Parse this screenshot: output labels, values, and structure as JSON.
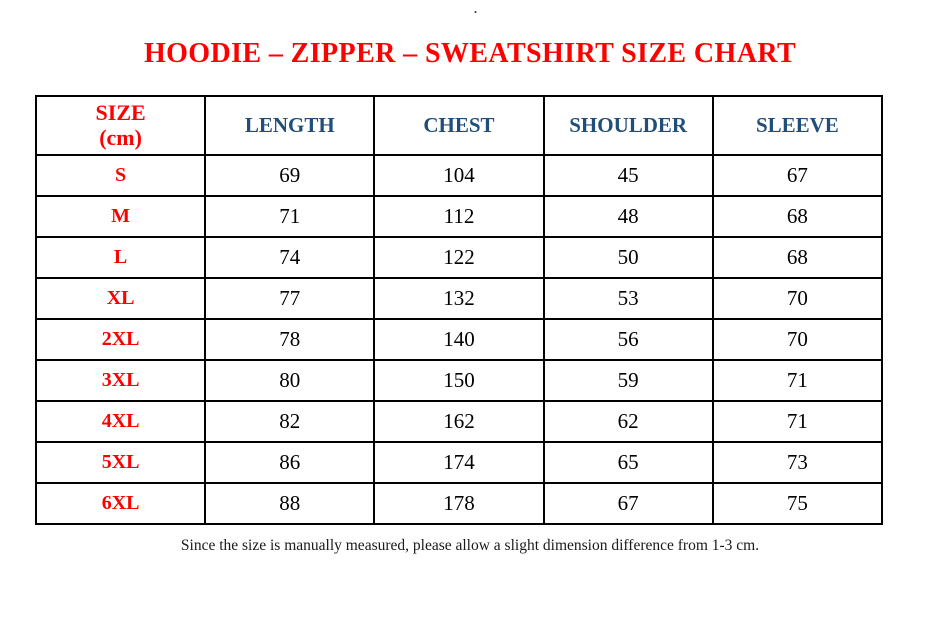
{
  "decor": {
    "top_dot": "."
  },
  "title": {
    "text": "HOODIE – ZIPPER – SWEATSHIRT SIZE CHART"
  },
  "table": {
    "header": {
      "size_line1": "SIZE",
      "size_line2": "(cm)",
      "columns": [
        "LENGTH",
        "CHEST",
        "SHOULDER",
        "SLEEVE"
      ]
    }
  },
  "footer": {
    "note": "Since the size is manually measured, please allow a slight dimension difference from 1-3 cm."
  },
  "colors": {
    "title_red": "#FF0000",
    "header_blue": "#1F4E79",
    "border": "#000000",
    "background": "#FFFFFF"
  },
  "chart_data": {
    "type": "table",
    "title": "HOODIE – ZIPPER – SWEATSHIRT SIZE CHART",
    "columns": [
      "SIZE (cm)",
      "LENGTH",
      "CHEST",
      "SHOULDER",
      "SLEEVE"
    ],
    "rows": [
      [
        "S",
        69,
        104,
        45,
        67
      ],
      [
        "M",
        71,
        112,
        48,
        68
      ],
      [
        "L",
        74,
        122,
        50,
        68
      ],
      [
        "XL",
        77,
        132,
        53,
        70
      ],
      [
        "2XL",
        78,
        140,
        56,
        70
      ],
      [
        "3XL",
        80,
        150,
        59,
        71
      ],
      [
        "4XL",
        82,
        162,
        62,
        71
      ],
      [
        "5XL",
        86,
        174,
        65,
        73
      ],
      [
        "6XL",
        88,
        178,
        67,
        75
      ]
    ],
    "note": "Since the size is manually measured, please allow a slight dimension difference from 1-3 cm."
  }
}
